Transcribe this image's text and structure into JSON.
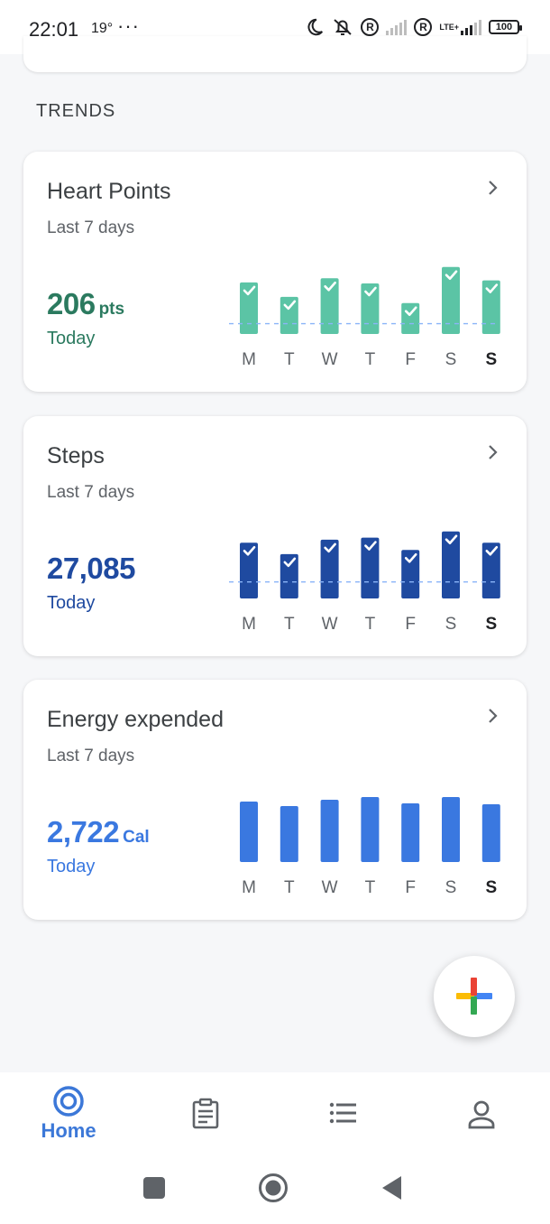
{
  "status_bar": {
    "time": "22:01",
    "temperature": "19°",
    "overflow": "···",
    "icons": [
      "moon-icon",
      "bell-off-icon",
      "roaming-r-icon",
      "signal-icon",
      "roaming-r-icon",
      "lte-signal-icon",
      "battery-icon"
    ],
    "roaming_letter": "R",
    "lte_label": "LTE+",
    "battery_level": "100"
  },
  "section_title": "TRENDS",
  "cards": [
    {
      "title": "Heart Points",
      "subtitle": "Last 7 days",
      "value": "206",
      "unit": "pts",
      "today_label": "Today",
      "color": "#5bc4a5",
      "text_color": "#2b7a5f",
      "checks": true,
      "chart_data": {
        "type": "bar",
        "categories": [
          "M",
          "T",
          "W",
          "T",
          "F",
          "S",
          "S"
        ],
        "values": [
          50,
          36,
          54,
          49,
          30,
          65,
          52
        ],
        "goal": 10,
        "ylim": [
          0,
          70
        ],
        "highlight_index": 6
      }
    },
    {
      "title": "Steps",
      "subtitle": "Last 7 days",
      "value": "27,085",
      "unit": "",
      "today_label": "Today",
      "color": "#1f4aa0",
      "text_color": "#1f4aa0",
      "checks": true,
      "chart_data": {
        "type": "bar",
        "categories": [
          "M",
          "T",
          "W",
          "T",
          "F",
          "S",
          "S"
        ],
        "values": [
          54,
          43,
          57,
          59,
          47,
          65,
          54
        ],
        "goal": 16,
        "ylim": [
          0,
          70
        ],
        "highlight_index": 6
      }
    },
    {
      "title": "Energy expended",
      "subtitle": "Last 7 days",
      "value": "2,722",
      "unit": "Cal",
      "today_label": "Today",
      "color": "#3a78e0",
      "text_color": "#3a78e0",
      "checks": false,
      "chart_data": {
        "type": "bar",
        "categories": [
          "M",
          "T",
          "W",
          "T",
          "F",
          "S",
          "S"
        ],
        "values": [
          67,
          62,
          69,
          72,
          65,
          72,
          64
        ],
        "goal": null,
        "ylim": [
          0,
          80
        ],
        "highlight_index": 6
      }
    }
  ],
  "fab": {
    "icon": "add-icon",
    "colors": [
      "#ea4335",
      "#4285f4",
      "#34a853",
      "#fbbc05"
    ]
  },
  "bottom_nav": [
    {
      "label": "Home",
      "icon": "home-ring-icon",
      "active": true
    },
    {
      "label": "",
      "icon": "journal-icon",
      "active": false
    },
    {
      "label": "",
      "icon": "browse-list-icon",
      "active": false
    },
    {
      "label": "",
      "icon": "profile-icon",
      "active": false
    }
  ],
  "system_nav": {
    "icons": [
      "recents-square-icon",
      "home-circle-icon",
      "back-triangle-icon"
    ]
  }
}
